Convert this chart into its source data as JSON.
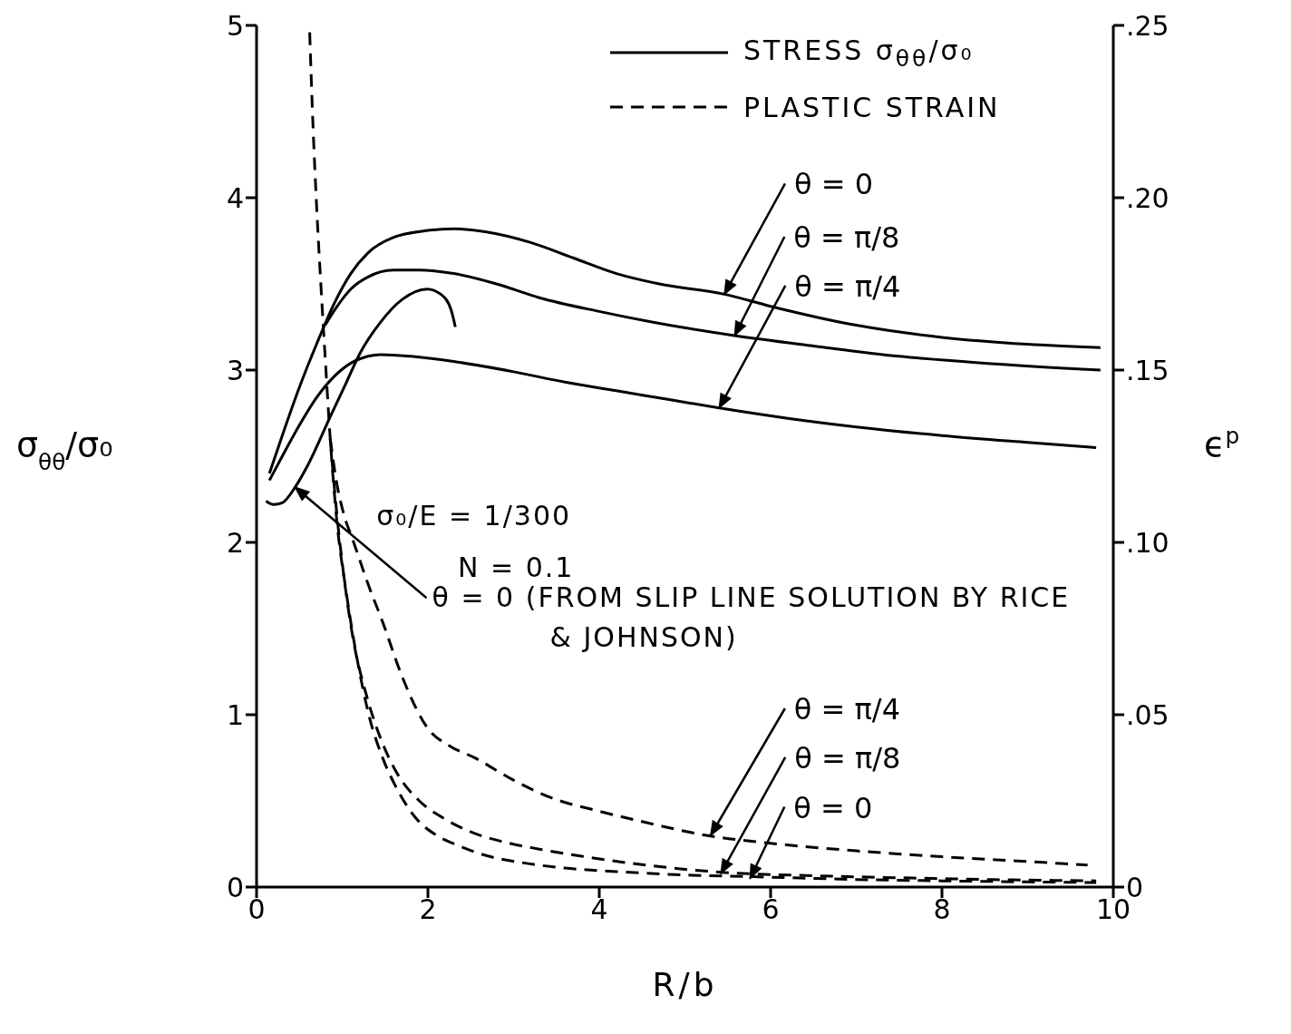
{
  "chart_data": {
    "type": "line",
    "xlabel": "R/b",
    "ylabel": "σ$_{θθ}$/σ₀",
    "y2label": "ϵ$^{p}$",
    "xlim": [
      0,
      10
    ],
    "xticks": [
      0,
      2,
      4,
      6,
      8,
      10
    ],
    "ylim": [
      0,
      5
    ],
    "yticks": [
      0,
      1,
      2,
      3,
      4,
      5
    ],
    "y2lim": [
      0,
      0.25
    ],
    "y2ticks": [
      {
        "value": 0,
        "label": "0"
      },
      {
        "value": 0.05,
        "label": ".05"
      },
      {
        "value": 0.1,
        "label": ".10"
      },
      {
        "value": 0.15,
        "label": ".15"
      },
      {
        "value": 0.2,
        "label": ".20"
      },
      {
        "value": 0.25,
        "label": ".25"
      }
    ],
    "grid": false,
    "legend": "top right",
    "marker": "none",
    "series": [
      {
        "name": "STRESS σ$_{θθ}$/σ₀",
        "color": "#000000",
        "line_style": "solid",
        "x": [
          0.15,
          0.3,
          0.5,
          0.7,
          0.9,
          1.1,
          1.3,
          1.6,
          2.0,
          2.3,
          2.7,
          3.2,
          3.7,
          4.2,
          4.7,
          5.46,
          6,
          7,
          8,
          9,
          9.85
        ],
        "values": [
          2.4,
          2.62,
          2.9,
          3.15,
          3.38,
          3.56,
          3.68,
          3.77,
          3.81,
          3.82,
          3.8,
          3.74,
          3.65,
          3.56,
          3.5,
          3.44,
          3.37,
          3.26,
          3.19,
          3.15,
          3.13
        ]
      },
      {
        "color": "#000000",
        "line_style": "solid",
        "x": [
          0.8,
          0.9,
          1.1,
          1.3,
          1.6,
          1.9,
          2.3,
          2.8,
          3.3,
          4,
          4.6,
          5.58,
          6.5,
          7.5,
          8.5,
          9.85
        ],
        "values": [
          3.26,
          3.34,
          3.47,
          3.54,
          3.58,
          3.58,
          3.56,
          3.5,
          3.42,
          3.34,
          3.28,
          3.2,
          3.14,
          3.08,
          3.04,
          3.0
        ]
      },
      {
        "color": "#000000",
        "line_style": "solid",
        "x": [
          0.15,
          0.3,
          0.5,
          0.7,
          0.9,
          1.1,
          1.3,
          1.45,
          1.8,
          2.3,
          3,
          3.6,
          4.2,
          4.8,
          5.4,
          6.2,
          7,
          8,
          9,
          9.8
        ],
        "values": [
          2.36,
          2.5,
          2.68,
          2.84,
          2.96,
          3.04,
          3.08,
          3.09,
          3.08,
          3.05,
          2.99,
          2.93,
          2.88,
          2.83,
          2.78,
          2.72,
          2.67,
          2.62,
          2.58,
          2.55
        ]
      },
      {
        "color": "#000000",
        "line_style": "solid",
        "x": [
          0.11,
          0.2,
          0.3,
          0.45,
          0.6,
          0.87,
          1.05,
          1.21,
          1.45,
          1.7,
          1.99,
          2.15,
          2.27,
          2.32
        ],
        "values": [
          2.24,
          2.22,
          2.23,
          2.32,
          2.45,
          2.74,
          2.93,
          3.1,
          3.28,
          3.41,
          3.47,
          3.44,
          3.35,
          3.25
        ]
      },
      {
        "name": "PLASTIC STRAIN",
        "color": "#000000",
        "line_style": "dashed",
        "axis": "y2",
        "x": [
          0.62,
          0.66,
          0.7,
          0.75,
          0.8,
          0.86,
          0.93,
          1.05,
          1.19,
          1.32,
          1.47,
          1.65,
          1.86,
          2.1,
          2.36,
          2.7,
          3.07,
          3.6,
          4.2,
          5,
          5.8,
          7,
          8,
          9,
          9.8
        ],
        "values": [
          0.248,
          0.22,
          0.198,
          0.175,
          0.154,
          0.13,
          0.108,
          0.085,
          0.064,
          0.049,
          0.0376,
          0.028,
          0.02,
          0.015,
          0.012,
          0.009,
          0.0072,
          0.0055,
          0.0045,
          0.0035,
          0.003,
          0.0022,
          0.0018,
          0.0015,
          0.0013
        ]
      },
      {
        "color": "#000000",
        "line_style": "dashed",
        "axis": "y2",
        "x": [
          0.86,
          0.93,
          1.02,
          1.12,
          1.29,
          1.45,
          1.64,
          1.9,
          2.18,
          2.5,
          2.9,
          3.3,
          3.78,
          4.5,
          5.42,
          6.5,
          7.5,
          8.5,
          9.8
        ],
        "values": [
          0.13,
          0.11,
          0.09,
          0.073,
          0.055,
          0.043,
          0.033,
          0.025,
          0.02,
          0.016,
          0.013,
          0.011,
          0.009,
          0.0065,
          0.0043,
          0.0033,
          0.0027,
          0.0022,
          0.0018
        ]
      },
      {
        "color": "#000000",
        "line_style": "dashed",
        "axis": "y2",
        "x": [
          0.86,
          0.93,
          1.02,
          1.12,
          1.3,
          1.47,
          1.7,
          2.0,
          2.25,
          2.54,
          3.0,
          3.43,
          4.0,
          4.5,
          5.3,
          6,
          7,
          8,
          9,
          9.7
        ],
        "values": [
          0.13,
          0.118,
          0.108,
          0.101,
          0.088,
          0.077,
          0.061,
          0.046,
          0.041,
          0.0376,
          0.031,
          0.026,
          0.022,
          0.019,
          0.0148,
          0.0127,
          0.0105,
          0.0088,
          0.0074,
          0.0064
        ]
      }
    ],
    "annotations": [
      {
        "text": "θ = 0",
        "x": 5.46,
        "y": 3.44
      },
      {
        "text": "θ = π/8",
        "x": 5.58,
        "y": 3.2
      },
      {
        "text": "θ = π/4",
        "x": 5.4,
        "y": 2.78
      },
      "σ₀/E = 1/300",
      "N = 0.1",
      {
        "text": "θ = 0 (FROM SLIP LINE SOLUTION BY RICE & JOHNSON)",
        "x": 0.45,
        "y": 2.32
      },
      {
        "text": "θ = π/4",
        "x": 5.3,
        "y": 0.3
      },
      {
        "text": "θ = π/8",
        "x": 5.42,
        "y": 0.08
      },
      {
        "text": "θ = 0",
        "x": 5.76,
        "y": 0.05
      }
    ]
  }
}
